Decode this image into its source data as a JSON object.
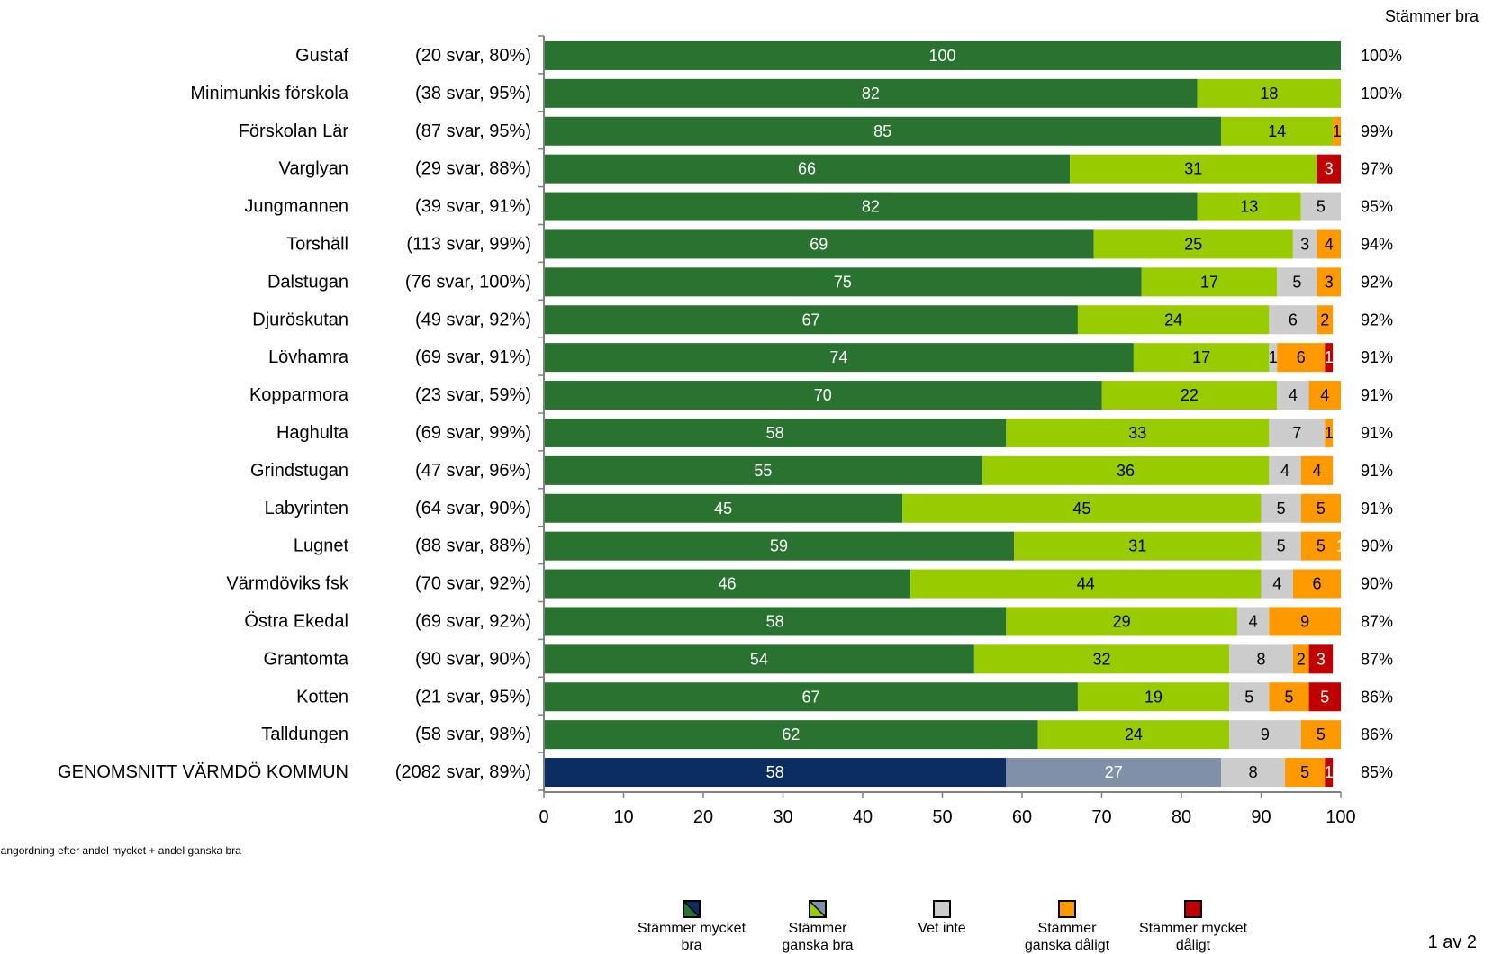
{
  "corner_header": "Stämmer bra",
  "page_number": "1 av 2",
  "footnote": "Rangordning efter andel mycket + andel ganska bra",
  "legend": [
    {
      "id": "mycket_bra",
      "label": "Stämmer mycket bra",
      "color": "#2a7230",
      "alt_color": "#0b2d62"
    },
    {
      "id": "ganska_bra",
      "label": "Stämmer ganska bra",
      "color": "#99cc00",
      "alt_color": "#8090a8"
    },
    {
      "id": "vet_inte",
      "label": "Vet inte",
      "color": "#cccccc"
    },
    {
      "id": "ganska_daligt",
      "label": "Stämmer ganska dåligt",
      "color": "#ff9900"
    },
    {
      "id": "mycket_daligt",
      "label": "Stämmer mycket dåligt",
      "color": "#c00000"
    }
  ],
  "chart_data": {
    "type": "bar",
    "orientation": "horizontal",
    "stacked": true,
    "xlim": [
      0,
      100
    ],
    "xticks": [
      "0",
      "10",
      "20",
      "30",
      "40",
      "50",
      "60",
      "70",
      "80",
      "90",
      "100"
    ],
    "series_names": [
      "Stämmer mycket bra",
      "Stämmer ganska bra",
      "Vet inte",
      "Stämmer ganska dåligt",
      "Stämmer mycket dåligt"
    ],
    "colors": [
      "#2a7230",
      "#99cc00",
      "#cccccc",
      "#ff9900",
      "#c00000"
    ],
    "total_colors": [
      "#0b2d62",
      "#8090a8",
      "#cccccc",
      "#ff9900",
      "#c00000"
    ],
    "rows": [
      {
        "name": "Gustaf",
        "info": "(20 svar, 80%)",
        "total": "100%",
        "values": [
          100,
          0,
          0,
          0,
          0
        ]
      },
      {
        "name": "Minimunkis förskola",
        "info": "(38 svar, 95%)",
        "total": "100%",
        "values": [
          82,
          18,
          0,
          0,
          0
        ]
      },
      {
        "name": "Förskolan Lär",
        "info": "(87 svar, 95%)",
        "total": "99%",
        "values": [
          85,
          14,
          0,
          1,
          0
        ]
      },
      {
        "name": "Varglyan",
        "info": "(29 svar, 88%)",
        "total": "97%",
        "values": [
          66,
          31,
          0,
          0,
          3
        ]
      },
      {
        "name": "Jungmannen",
        "info": "(39 svar, 91%)",
        "total": "95%",
        "values": [
          82,
          13,
          5,
          0,
          0
        ]
      },
      {
        "name": "Torshäll",
        "info": "(113 svar, 99%)",
        "total": "94%",
        "values": [
          69,
          25,
          3,
          4,
          0
        ]
      },
      {
        "name": "Dalstugan",
        "info": "(76 svar, 100%)",
        "total": "92%",
        "values": [
          75,
          17,
          5,
          3,
          0
        ]
      },
      {
        "name": "Djuröskutan",
        "info": "(49 svar, 92%)",
        "total": "92%",
        "values": [
          67,
          24,
          6,
          2,
          0
        ]
      },
      {
        "name": "Lövhamra",
        "info": "(69 svar, 91%)",
        "total": "91%",
        "values": [
          74,
          17,
          1,
          6,
          1
        ]
      },
      {
        "name": "Kopparmora",
        "info": "(23 svar, 59%)",
        "total": "91%",
        "values": [
          70,
          22,
          4,
          4,
          0
        ]
      },
      {
        "name": "Haghulta",
        "info": "(69 svar, 99%)",
        "total": "91%",
        "values": [
          58,
          33,
          7,
          1,
          0
        ]
      },
      {
        "name": "Grindstugan",
        "info": "(47 svar, 96%)",
        "total": "91%",
        "values": [
          55,
          36,
          4,
          4,
          0
        ]
      },
      {
        "name": "Labyrinten",
        "info": "(64 svar, 90%)",
        "total": "91%",
        "values": [
          45,
          45,
          5,
          5,
          0
        ]
      },
      {
        "name": "Lugnet",
        "info": "(88 svar, 88%)",
        "total": "90%",
        "values": [
          59,
          31,
          5,
          5,
          1
        ]
      },
      {
        "name": "Värmdöviks fsk",
        "info": "(70 svar, 92%)",
        "total": "90%",
        "values": [
          46,
          44,
          4,
          6,
          0
        ]
      },
      {
        "name": "Östra Ekedal",
        "info": "(69 svar, 92%)",
        "total": "87%",
        "values": [
          58,
          29,
          4,
          9,
          0
        ]
      },
      {
        "name": "Grantomta",
        "info": "(90 svar, 90%)",
        "total": "87%",
        "values": [
          54,
          32,
          8,
          2,
          3
        ]
      },
      {
        "name": "Kotten",
        "info": "(21 svar, 95%)",
        "total": "86%",
        "values": [
          67,
          19,
          5,
          5,
          5
        ]
      },
      {
        "name": "Talldungen",
        "info": "(58 svar, 98%)",
        "total": "86%",
        "values": [
          62,
          24,
          9,
          5,
          0
        ]
      },
      {
        "name": "GENOMSNITT VÄRMDÖ KOMMUN",
        "info": "(2082 svar, 89%)",
        "total": "85%",
        "values": [
          58,
          27,
          8,
          5,
          1
        ],
        "is_average": true
      }
    ]
  }
}
